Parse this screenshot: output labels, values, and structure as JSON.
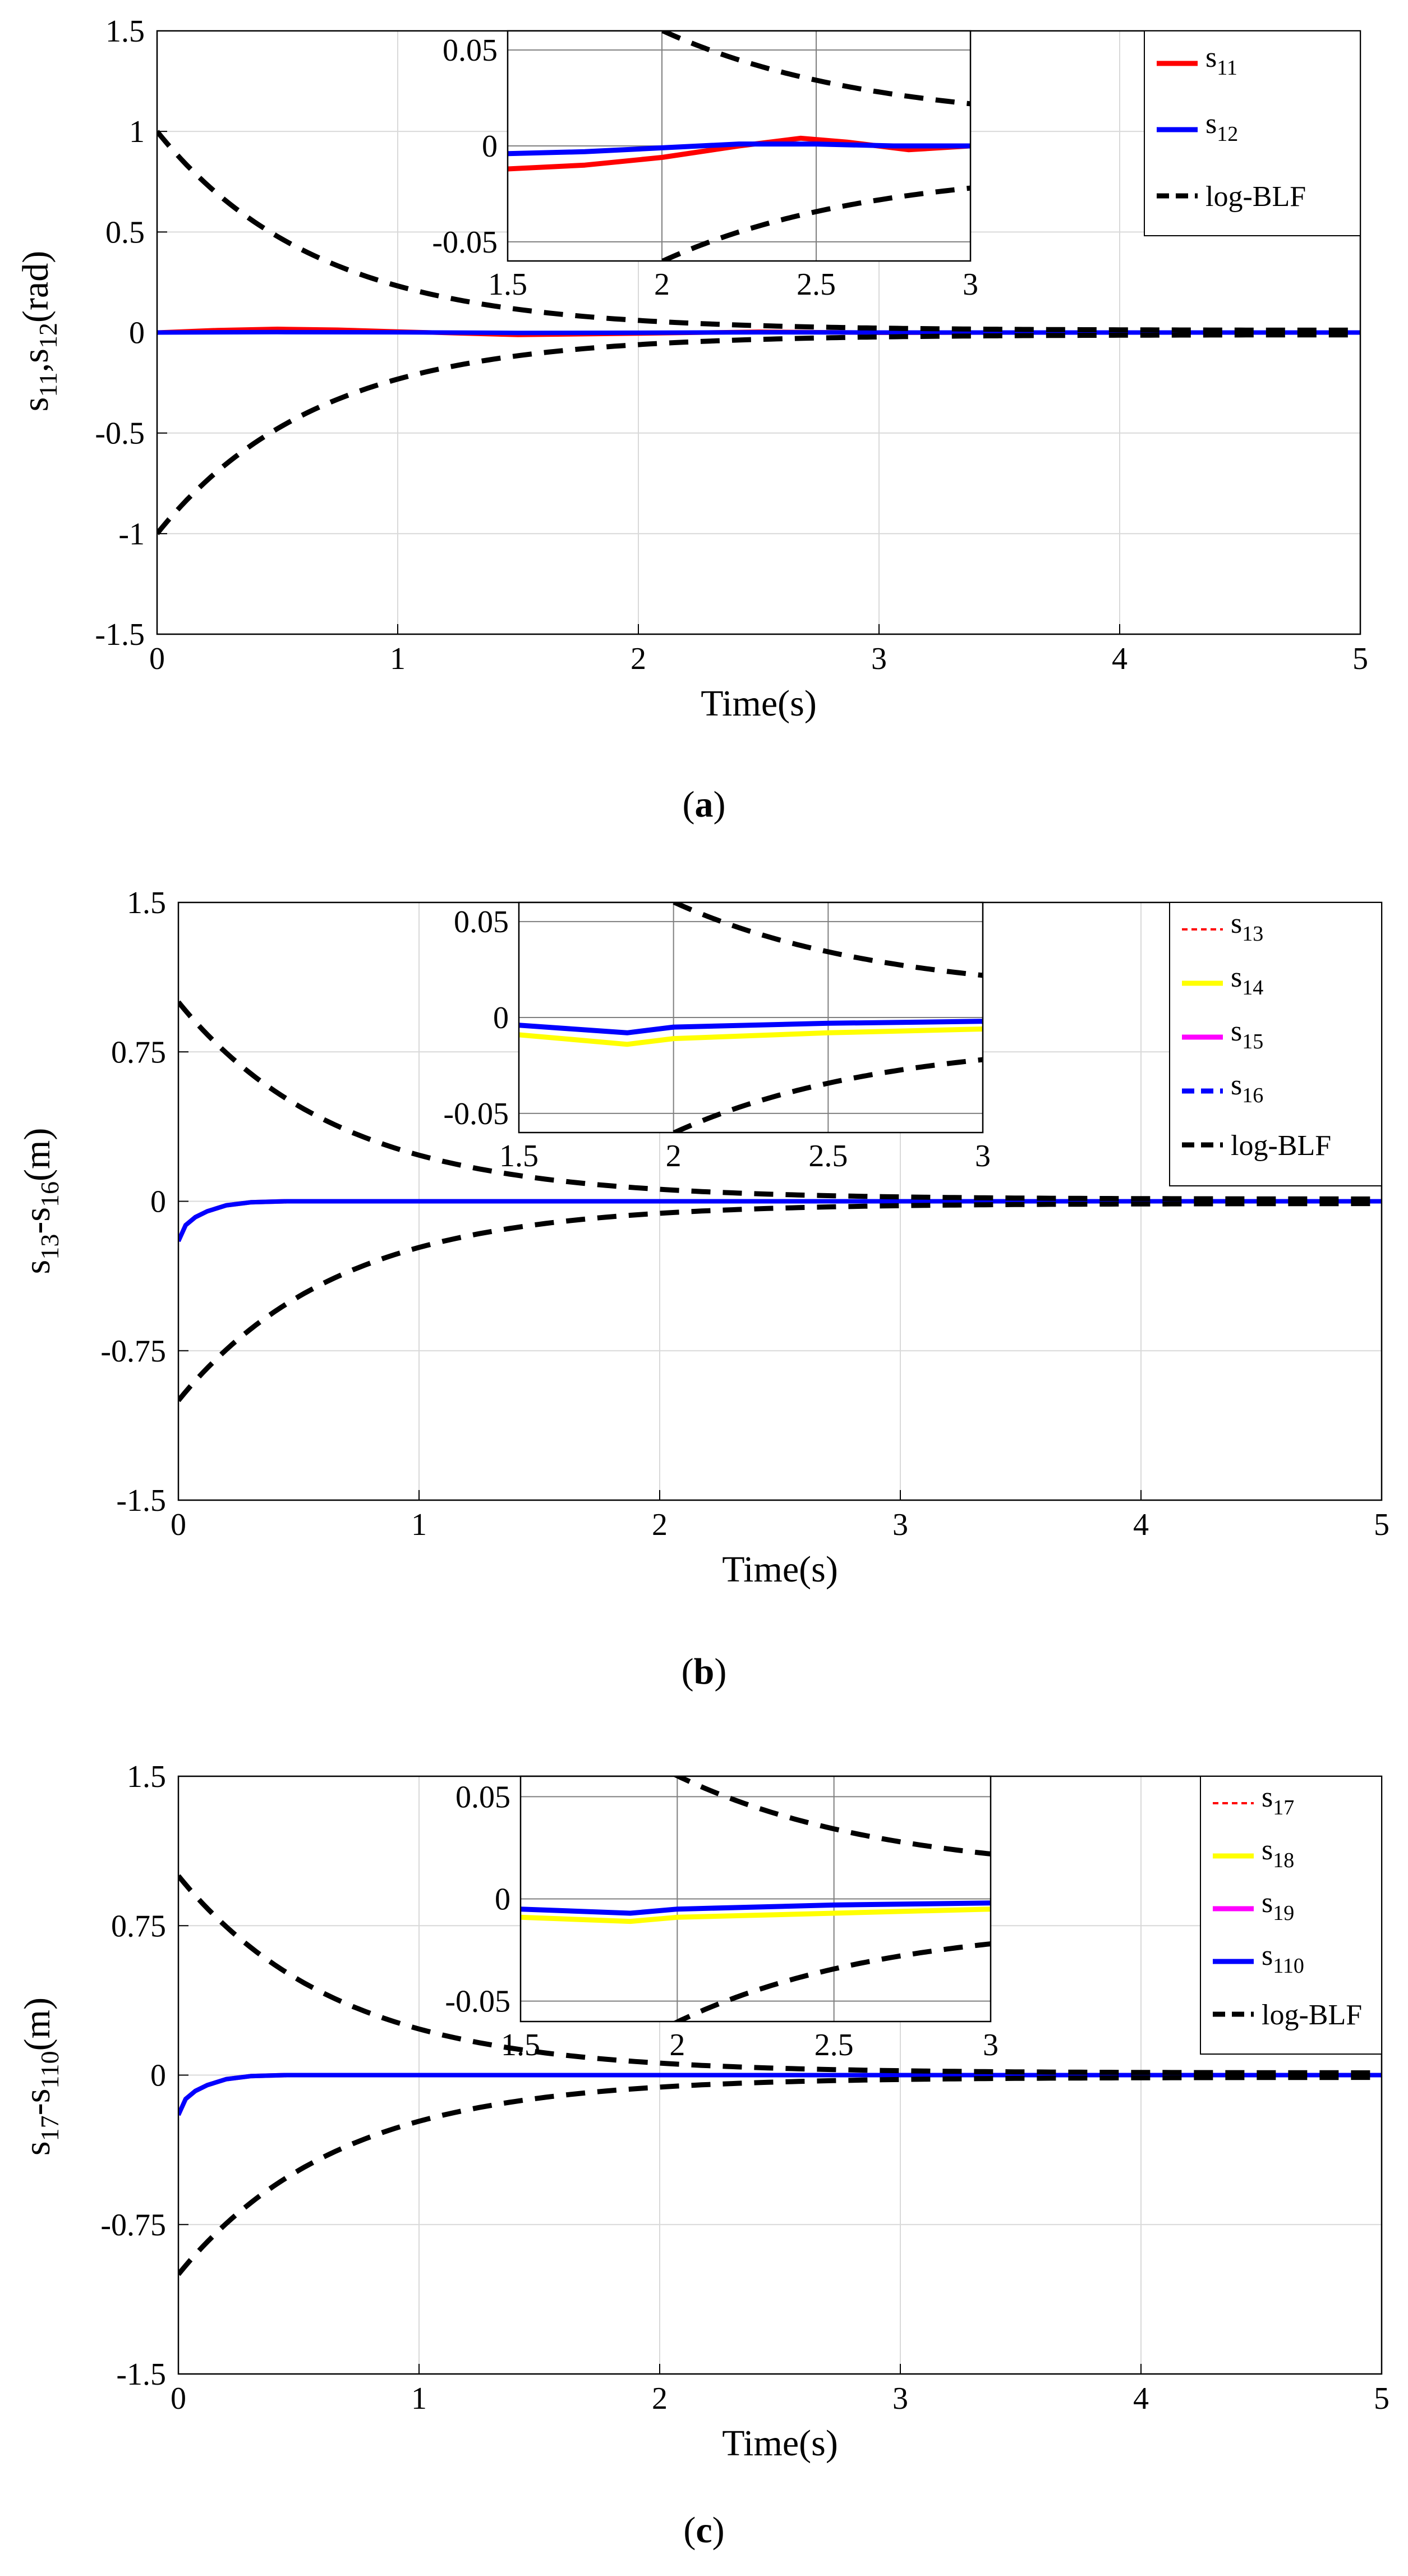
{
  "chart_data": [
    {
      "type": "line",
      "caption_letter": "a",
      "xlabel": "Time(s)",
      "ylabel": {
        "base": "s",
        "sub1": "11",
        "sep": ",s",
        "sub2": "12",
        "unit": "(rad)"
      },
      "xlim": [
        0,
        5
      ],
      "ylim": [
        -1.5,
        1.5
      ],
      "xticks": [
        "0",
        "1",
        "2",
        "3",
        "4",
        "5"
      ],
      "xtick_values": [
        0,
        1,
        2,
        3,
        4,
        5
      ],
      "yticks": [
        "1.5",
        "1",
        "0.5",
        "0",
        "-0.5",
        "-1",
        "-1.5"
      ],
      "ytick_values": [
        1.5,
        1,
        0.5,
        0,
        -0.5,
        -1,
        -1.5
      ],
      "legend": [
        {
          "base": "s",
          "sub": "11",
          "color": "#ff0000",
          "style": "solid"
        },
        {
          "base": "s",
          "sub": "12",
          "color": "#0000ff",
          "style": "solid"
        },
        {
          "label": "log-BLF",
          "color": "#000000",
          "style": "dashed"
        }
      ],
      "series": [
        {
          "name": "s11",
          "color": "#ff0000",
          "x": [
            0,
            0.25,
            0.5,
            0.75,
            1,
            1.25,
            1.5,
            2,
            2.5,
            3,
            3.5,
            4,
            4.5,
            5
          ],
          "values": [
            0,
            0.012,
            0.018,
            0.014,
            0.005,
            -0.004,
            -0.012,
            -0.005,
            0.004,
            -0.001,
            0,
            0,
            0,
            0
          ]
        },
        {
          "name": "s12",
          "color": "#0000ff",
          "x": [
            0,
            0.5,
            1,
            1.5,
            2,
            2.5,
            3,
            3.5,
            4,
            4.5,
            5
          ],
          "values": [
            0,
            0.002,
            0.001,
            -0.002,
            -0.001,
            0.001,
            0,
            0,
            0,
            0,
            0
          ]
        }
      ],
      "bound": {
        "name": "log-BLF",
        "initial": 1,
        "final": 0.011,
        "rate": 1.5
      },
      "inset": {
        "xlim": [
          1.5,
          3
        ],
        "ylim": [
          -0.06,
          0.06
        ],
        "xticks": [
          "1.5",
          "2",
          "2.5",
          "3"
        ],
        "xtick_values": [
          1.5,
          2,
          2.5,
          3
        ],
        "yticks": [
          "0.05",
          "0",
          "-0.05"
        ],
        "ytick_values": [
          0.05,
          0,
          -0.05
        ],
        "series": [
          {
            "name": "s11",
            "color": "#ff0000",
            "x": [
              1.5,
              1.75,
              2,
              2.25,
              2.45,
              2.6,
              2.8,
              3
            ],
            "values": [
              -0.012,
              -0.01,
              -0.006,
              0,
              0.004,
              0.002,
              -0.002,
              0
            ]
          },
          {
            "name": "s12",
            "color": "#0000ff",
            "x": [
              1.5,
              1.75,
              2,
              2.25,
              2.5,
              2.75,
              3
            ],
            "values": [
              -0.004,
              -0.003,
              -0.001,
              0.001,
              0.001,
              0,
              0
            ]
          }
        ]
      }
    },
    {
      "type": "line",
      "caption_letter": "b",
      "xlabel": "Time(s)",
      "ylabel": {
        "base": "s",
        "sub1": "13",
        "sep": "-s",
        "sub2": "16",
        "unit": "(m)"
      },
      "xlim": [
        0,
        5
      ],
      "ylim": [
        -1.5,
        1.5
      ],
      "xticks": [
        "0",
        "1",
        "2",
        "3",
        "4",
        "5"
      ],
      "xtick_values": [
        0,
        1,
        2,
        3,
        4,
        5
      ],
      "yticks": [
        "1.5",
        "0.75",
        "0",
        "-0.75",
        "-1.5"
      ],
      "ytick_values": [
        1.5,
        0.75,
        0,
        -0.75,
        -1.5
      ],
      "legend": [
        {
          "base": "s",
          "sub": "13",
          "color": "#ff0000",
          "style": "dashed-thin"
        },
        {
          "base": "s",
          "sub": "14",
          "color": "#ffff00",
          "style": "solid"
        },
        {
          "base": "s",
          "sub": "15",
          "color": "#ff00ff",
          "style": "solid"
        },
        {
          "base": "s",
          "sub": "16",
          "color": "#0000ff",
          "style": "dashed"
        },
        {
          "label": "log-BLF",
          "color": "#000000",
          "style": "dashed"
        }
      ],
      "series": [
        {
          "name": "s13",
          "color": "#ff0000",
          "x": [
            0,
            0.03,
            0.07,
            0.12,
            0.2,
            0.3,
            0.45,
            1,
            2,
            3,
            4,
            5
          ],
          "values": [
            -0.2,
            -0.12,
            -0.08,
            -0.05,
            -0.02,
            -0.005,
            0,
            0,
            0,
            0,
            0,
            0
          ]
        },
        {
          "name": "s14",
          "color": "#ffff00",
          "x": [
            0,
            0.03,
            0.07,
            0.12,
            0.2,
            0.3,
            0.45,
            1,
            2,
            3,
            4,
            5
          ],
          "values": [
            -0.2,
            -0.12,
            -0.08,
            -0.05,
            -0.02,
            -0.005,
            0,
            0,
            0,
            0,
            0,
            0
          ]
        },
        {
          "name": "s15",
          "color": "#ff00ff",
          "x": [
            0,
            0.03,
            0.07,
            0.12,
            0.2,
            0.3,
            0.45,
            1,
            2,
            3,
            4,
            5
          ],
          "values": [
            -0.2,
            -0.12,
            -0.08,
            -0.05,
            -0.02,
            -0.005,
            0,
            0,
            0,
            0,
            0,
            0
          ]
        },
        {
          "name": "s16",
          "color": "#0000ff",
          "x": [
            0,
            0.03,
            0.07,
            0.12,
            0.2,
            0.3,
            0.45,
            1,
            2,
            3,
            4,
            5
          ],
          "values": [
            -0.2,
            -0.12,
            -0.08,
            -0.05,
            -0.02,
            -0.005,
            0,
            0,
            0,
            0,
            0,
            0
          ]
        }
      ],
      "bound": {
        "name": "log-BLF",
        "initial": 1,
        "final": 0.011,
        "rate": 1.5
      },
      "inset": {
        "xlim": [
          1.5,
          3
        ],
        "ylim": [
          -0.06,
          0.06
        ],
        "xticks": [
          "1.5",
          "2",
          "2.5",
          "3"
        ],
        "xtick_values": [
          1.5,
          2,
          2.5,
          3
        ],
        "yticks": [
          "0.05",
          "0",
          "-0.05"
        ],
        "ytick_values": [
          0.05,
          0,
          -0.05
        ],
        "series": [
          {
            "name": "s14",
            "color": "#ffff00",
            "x": [
              1.5,
              1.85,
              2,
              2.5,
              3
            ],
            "values": [
              -0.009,
              -0.014,
              -0.011,
              -0.008,
              -0.006
            ]
          },
          {
            "name": "s16",
            "color": "#0000ff",
            "x": [
              1.5,
              1.85,
              2,
              2.5,
              3
            ],
            "values": [
              -0.004,
              -0.008,
              -0.005,
              -0.003,
              -0.002
            ]
          }
        ]
      }
    },
    {
      "type": "line",
      "caption_letter": "c",
      "xlabel": "Time(s)",
      "ylabel": {
        "base": "s",
        "sub1": "17",
        "sep": "-s",
        "sub2": "110",
        "unit": "(m)"
      },
      "xlim": [
        0,
        5
      ],
      "ylim": [
        -1.5,
        1.5
      ],
      "xticks": [
        "0",
        "1",
        "2",
        "3",
        "4",
        "5"
      ],
      "xtick_values": [
        0,
        1,
        2,
        3,
        4,
        5
      ],
      "yticks": [
        "1.5",
        "0.75",
        "0",
        "-0.75",
        "-1.5"
      ],
      "ytick_values": [
        1.5,
        0.75,
        0,
        -0.75,
        -1.5
      ],
      "legend": [
        {
          "base": "s",
          "sub": "17",
          "color": "#ff0000",
          "style": "dashed-thin"
        },
        {
          "base": "s",
          "sub": "18",
          "color": "#ffff00",
          "style": "solid"
        },
        {
          "base": "s",
          "sub": "19",
          "color": "#ff00ff",
          "style": "solid"
        },
        {
          "base": "s",
          "sub": "110",
          "color": "#0000ff",
          "style": "solid"
        },
        {
          "label": "log-BLF",
          "color": "#000000",
          "style": "dashed"
        }
      ],
      "series": [
        {
          "name": "s17",
          "color": "#ff0000",
          "x": [
            0,
            0.03,
            0.07,
            0.12,
            0.2,
            0.3,
            0.45,
            1,
            2,
            3,
            4,
            5
          ],
          "values": [
            -0.2,
            -0.12,
            -0.08,
            -0.05,
            -0.02,
            -0.005,
            0,
            0,
            0,
            0,
            0,
            0
          ]
        },
        {
          "name": "s18",
          "color": "#ffff00",
          "x": [
            0,
            0.03,
            0.07,
            0.12,
            0.2,
            0.3,
            0.45,
            1,
            2,
            3,
            4,
            5
          ],
          "values": [
            -0.2,
            -0.12,
            -0.08,
            -0.05,
            -0.02,
            -0.005,
            0,
            0,
            0,
            0,
            0,
            0
          ]
        },
        {
          "name": "s19",
          "color": "#ff00ff",
          "x": [
            0,
            0.03,
            0.07,
            0.12,
            0.2,
            0.3,
            0.45,
            1,
            2,
            3,
            4,
            5
          ],
          "values": [
            -0.2,
            -0.12,
            -0.08,
            -0.05,
            -0.02,
            -0.005,
            0,
            0,
            0,
            0,
            0,
            0
          ]
        },
        {
          "name": "s110",
          "color": "#0000ff",
          "x": [
            0,
            0.03,
            0.07,
            0.12,
            0.2,
            0.3,
            0.45,
            1,
            2,
            3,
            4,
            5
          ],
          "values": [
            -0.2,
            -0.12,
            -0.08,
            -0.05,
            -0.02,
            -0.005,
            0,
            0,
            0,
            0,
            0,
            0
          ]
        }
      ],
      "bound": {
        "name": "log-BLF",
        "initial": 1,
        "final": 0.011,
        "rate": 1.5
      },
      "inset": {
        "xlim": [
          1.5,
          3
        ],
        "ylim": [
          -0.06,
          0.06
        ],
        "xticks": [
          "1.5",
          "2",
          "2.5",
          "3"
        ],
        "xtick_values": [
          1.5,
          2,
          2.5,
          3
        ],
        "yticks": [
          "0.05",
          "0",
          "-0.05"
        ],
        "ytick_values": [
          0.05,
          0,
          -0.05
        ],
        "series": [
          {
            "name": "s18",
            "color": "#ffff00",
            "x": [
              1.5,
              1.85,
              2,
              2.5,
              3
            ],
            "values": [
              -0.009,
              -0.011,
              -0.009,
              -0.007,
              -0.005
            ]
          },
          {
            "name": "s110",
            "color": "#0000ff",
            "x": [
              1.5,
              1.85,
              2,
              2.5,
              3
            ],
            "values": [
              -0.005,
              -0.007,
              -0.005,
              -0.003,
              -0.002
            ]
          }
        ]
      }
    }
  ]
}
